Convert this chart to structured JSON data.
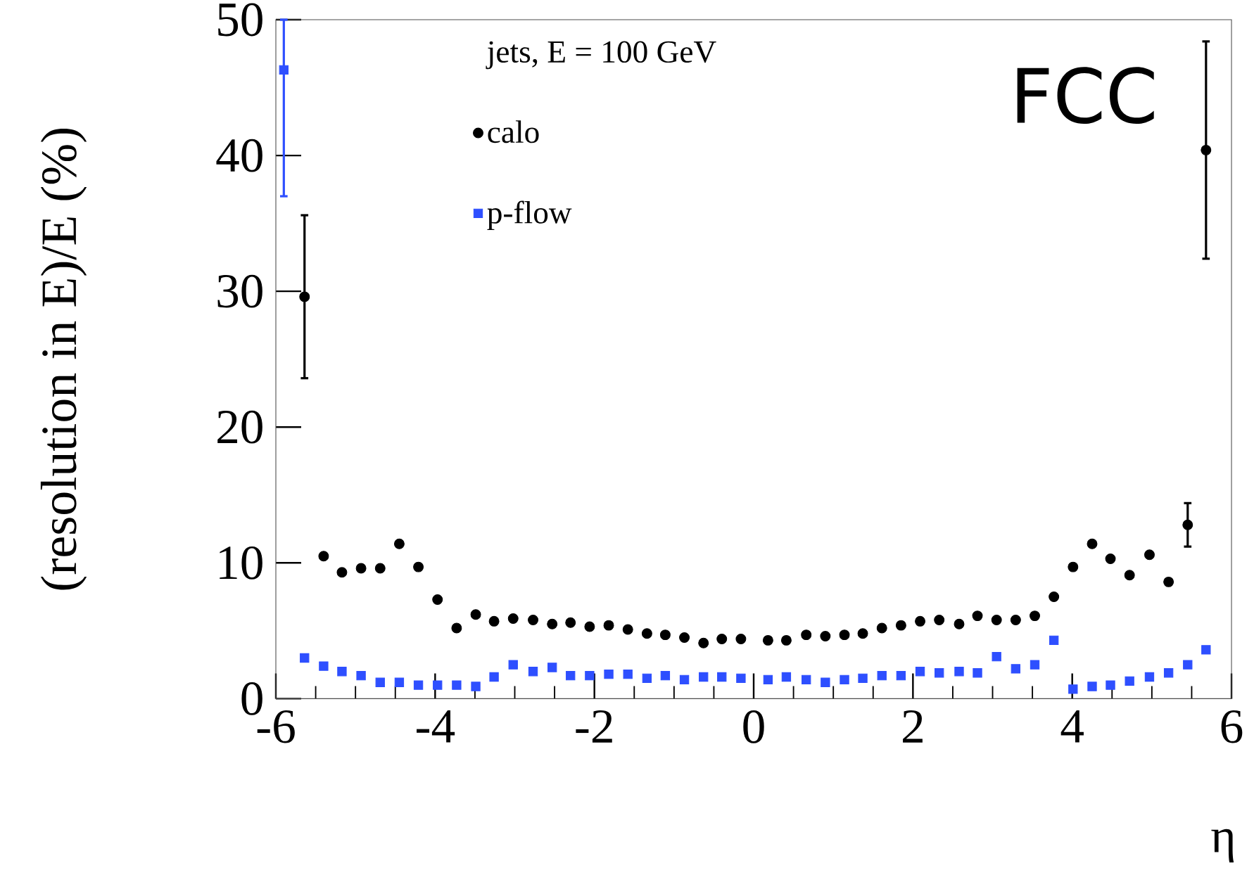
{
  "chart_data": {
    "type": "scatter",
    "xlabel": "η",
    "ylabel": "(resolution in E)/E (%)",
    "legend_title": "jets, E = 100 GeV",
    "annotations": [
      "FCC"
    ],
    "xlim": [
      -6,
      6
    ],
    "xticks": [
      -6,
      -4,
      -2,
      0,
      2,
      4,
      6
    ],
    "ylim": [
      0,
      50
    ],
    "yticks": [
      0,
      10,
      20,
      30,
      40,
      50
    ],
    "legend": "top",
    "grid": false,
    "series": [
      {
        "name": "calo",
        "color": "#000000",
        "marker": "circle",
        "x": [
          -5.64,
          -5.4,
          -5.17,
          -4.93,
          -4.69,
          -4.45,
          -4.21,
          -3.97,
          -3.73,
          -3.49,
          -3.26,
          -3.02,
          -2.77,
          -2.53,
          -2.3,
          -2.06,
          -1.82,
          -1.58,
          -1.34,
          -1.11,
          -0.87,
          -0.63,
          -0.4,
          -0.16,
          0.18,
          0.41,
          0.66,
          0.9,
          1.14,
          1.37,
          1.61,
          1.85,
          2.09,
          2.33,
          2.58,
          2.81,
          3.05,
          3.29,
          3.53,
          3.77,
          4.01,
          4.25,
          4.48,
          4.72,
          4.97,
          5.21,
          5.45,
          5.68
        ],
        "values": [
          29.6,
          10.5,
          9.3,
          9.6,
          9.6,
          11.4,
          9.7,
          7.3,
          5.2,
          6.2,
          5.7,
          5.9,
          5.8,
          5.5,
          5.6,
          5.3,
          5.4,
          5.1,
          4.8,
          4.7,
          4.5,
          4.1,
          4.4,
          4.4,
          4.3,
          4.3,
          4.7,
          4.6,
          4.7,
          4.8,
          5.2,
          5.4,
          5.7,
          5.8,
          5.5,
          6.1,
          5.8,
          5.8,
          6.1,
          7.5,
          9.7,
          11.4,
          10.3,
          9.1,
          10.6,
          8.6,
          12.8,
          40.4
        ],
        "errors": [
          6,
          null,
          null,
          null,
          null,
          null,
          null,
          null,
          null,
          null,
          null,
          null,
          null,
          null,
          null,
          null,
          null,
          null,
          null,
          null,
          null,
          null,
          null,
          null,
          null,
          null,
          null,
          null,
          null,
          null,
          null,
          null,
          null,
          null,
          null,
          null,
          null,
          null,
          null,
          null,
          null,
          null,
          null,
          null,
          null,
          null,
          1.6,
          8
        ]
      },
      {
        "name": "p-flow",
        "color": "#2e4fff",
        "marker": "square",
        "x": [
          -5.9,
          -5.64,
          -5.4,
          -5.17,
          -4.93,
          -4.69,
          -4.45,
          -4.21,
          -3.97,
          -3.73,
          -3.49,
          -3.26,
          -3.02,
          -2.77,
          -2.53,
          -2.3,
          -2.06,
          -1.82,
          -1.58,
          -1.34,
          -1.11,
          -0.87,
          -0.63,
          -0.4,
          -0.16,
          0.18,
          0.41,
          0.66,
          0.9,
          1.14,
          1.37,
          1.61,
          1.85,
          2.09,
          2.33,
          2.58,
          2.81,
          3.05,
          3.29,
          3.53,
          3.77,
          4.01,
          4.25,
          4.48,
          4.72,
          4.97,
          5.21,
          5.45,
          5.68
        ],
        "values": [
          46.3,
          3.0,
          2.4,
          2.0,
          1.7,
          1.2,
          1.2,
          1.0,
          1.0,
          1.0,
          0.9,
          1.6,
          2.5,
          2.0,
          2.3,
          1.7,
          1.7,
          1.8,
          1.8,
          1.5,
          1.7,
          1.4,
          1.6,
          1.6,
          1.5,
          1.4,
          1.6,
          1.4,
          1.2,
          1.4,
          1.5,
          1.7,
          1.7,
          2.0,
          1.9,
          2.0,
          1.9,
          3.1,
          2.2,
          2.5,
          4.3,
          0.7,
          0.9,
          1.0,
          1.3,
          1.6,
          1.9,
          2.5,
          3.6
        ],
        "errors": [
          [
            37.0,
            50.0
          ],
          null,
          null,
          null,
          null,
          null,
          null,
          null,
          null,
          null,
          null,
          null,
          null,
          null,
          null,
          null,
          null,
          null,
          null,
          null,
          null,
          null,
          null,
          null,
          null,
          null,
          null,
          null,
          null,
          null,
          null,
          null,
          null,
          null,
          null,
          null,
          null,
          null,
          null,
          null,
          null,
          null,
          null,
          null,
          null,
          null,
          null,
          null,
          null
        ]
      }
    ]
  }
}
